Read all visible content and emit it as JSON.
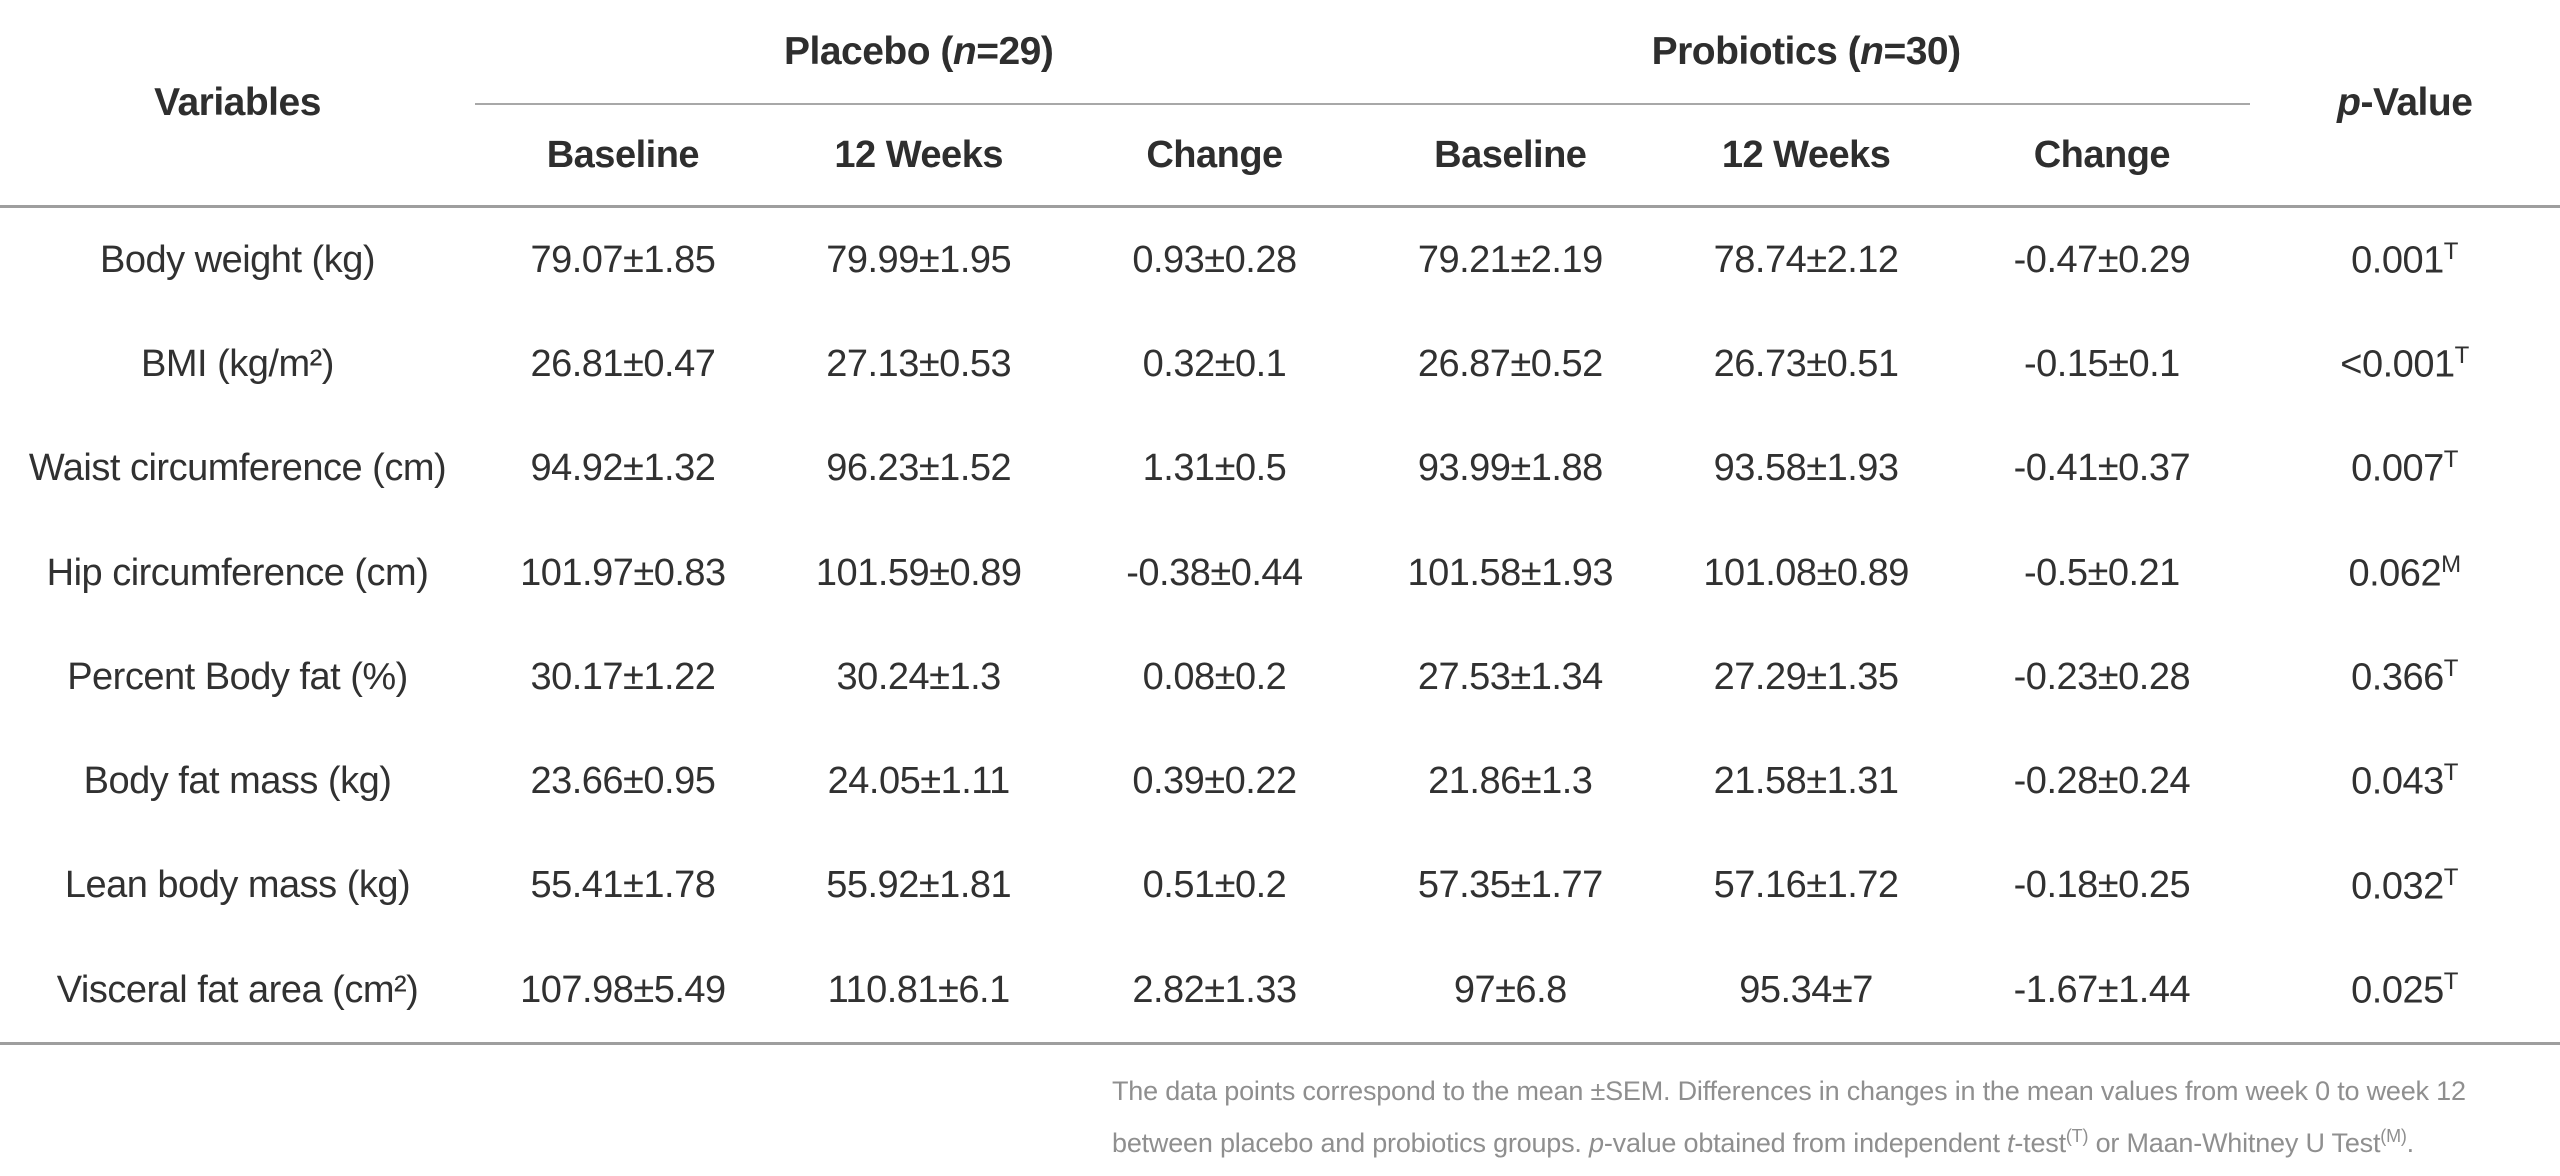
{
  "colors": {
    "text": "#313131",
    "muted_footnote": "#8f8f8f",
    "rule": "#9e9e9e"
  },
  "header": {
    "variables_label": "Variables",
    "groups": [
      {
        "prefix": "Placebo (",
        "italic": "n",
        "suffix": "=29)"
      },
      {
        "prefix": "Probiotics (",
        "italic": "n",
        "suffix": "=30)"
      }
    ],
    "p_value": {
      "italic": "p",
      "suffix": "-Value"
    },
    "sub_columns": [
      "Baseline",
      "12 Weeks",
      "Change",
      "Baseline",
      "12 Weeks",
      "Change"
    ]
  },
  "table": {
    "rows": [
      {
        "variable": "Body weight (kg)",
        "values": [
          "79.07±1.85",
          "79.99±1.95",
          "0.93±0.28",
          "79.21±2.19",
          "78.74±2.12",
          "-0.47±0.29"
        ],
        "p": {
          "value": "0.001",
          "sup": "T"
        }
      },
      {
        "variable": "BMI (kg/m²)",
        "values": [
          "26.81±0.47",
          "27.13±0.53",
          "0.32±0.1",
          "26.87±0.52",
          "26.73±0.51",
          "-0.15±0.1"
        ],
        "p": {
          "value": "<0.001",
          "sup": "T"
        }
      },
      {
        "variable": "Waist circumference (cm)",
        "values": [
          "94.92±1.32",
          "96.23±1.52",
          "1.31±0.5",
          "93.99±1.88",
          "93.58±1.93",
          "-0.41±0.37"
        ],
        "p": {
          "value": "0.007",
          "sup": "T"
        }
      },
      {
        "variable": "Hip circumference (cm)",
        "values": [
          "101.97±0.83",
          "101.59±0.89",
          "-0.38±0.44",
          "101.58±1.93",
          "101.08±0.89",
          "-0.5±0.21"
        ],
        "p": {
          "value": "0.062",
          "sup": "M"
        }
      },
      {
        "variable": "Percent Body fat (%)",
        "values": [
          "30.17±1.22",
          "30.24±1.3",
          "0.08±0.2",
          "27.53±1.34",
          "27.29±1.35",
          "-0.23±0.28"
        ],
        "p": {
          "value": "0.366",
          "sup": "T"
        }
      },
      {
        "variable": "Body fat mass (kg)",
        "values": [
          "23.66±0.95",
          "24.05±1.11",
          "0.39±0.22",
          "21.86±1.3",
          "21.58±1.31",
          "-0.28±0.24"
        ],
        "p": {
          "value": "0.043",
          "sup": "T"
        }
      },
      {
        "variable": "Lean body mass (kg)",
        "values": [
          "55.41±1.78",
          "55.92±1.81",
          "0.51±0.2",
          "57.35±1.77",
          "57.16±1.72",
          "-0.18±0.25"
        ],
        "p": {
          "value": "0.032",
          "sup": "T"
        }
      },
      {
        "variable": "Visceral fat area (cm²)",
        "values": [
          "107.98±5.49",
          "110.81±6.1",
          "2.82±1.33",
          "97±6.8",
          "95.34±7",
          "-1.67±1.44"
        ],
        "p": {
          "value": "0.025",
          "sup": "T"
        }
      }
    ]
  },
  "footnote": {
    "lines": [
      [
        {
          "t": "The data points correspond to the mean ±SEM. Differences in changes in the mean values from week 0 to week 12"
        }
      ],
      [
        {
          "t": "between placebo and probiotics groups. "
        },
        {
          "t": "p",
          "i": true
        },
        {
          "t": "-value obtained from independent "
        },
        {
          "t": "t",
          "i": true
        },
        {
          "t": "-test"
        },
        {
          "t": "(T)",
          "sup": true
        },
        {
          "t": " or Maan-Whitney U Test"
        },
        {
          "t": "(M)",
          "sup": true
        },
        {
          "t": "."
        }
      ]
    ]
  }
}
